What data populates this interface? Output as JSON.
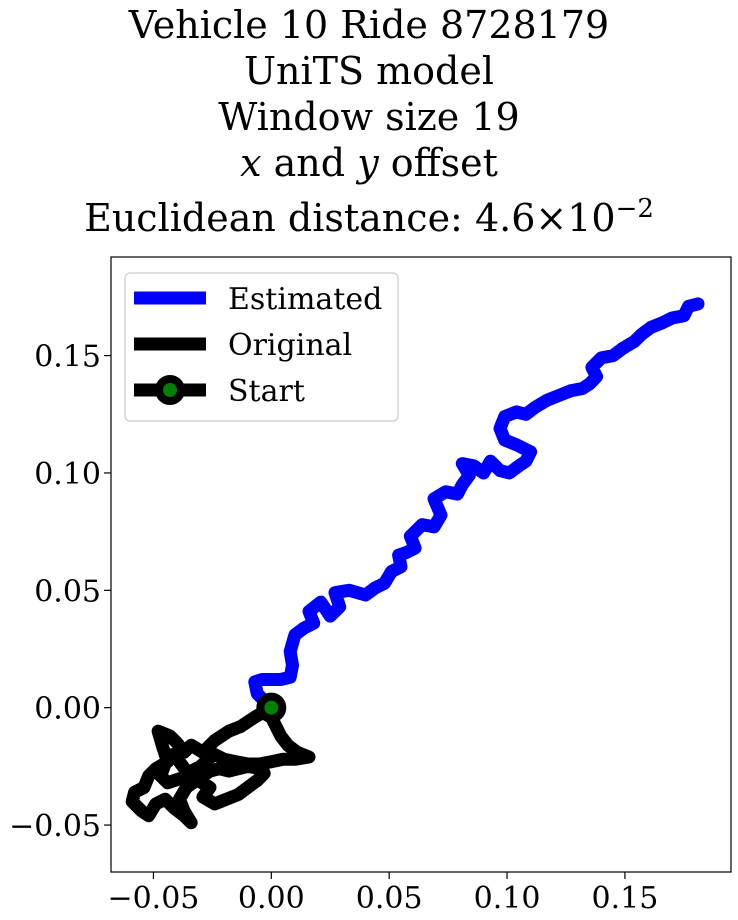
{
  "chart_data": {
    "type": "line",
    "title_lines": [
      "Vehicle 10 Ride 8728179",
      "UniTS model",
      "Window size 19"
    ],
    "title_offset_line": {
      "x_var": "x",
      "and": " and ",
      "y_var": "y",
      "tail": " offset"
    },
    "title_distance_line": {
      "label": "Euclidean distance: ",
      "mantissa": "4.6",
      "times": "×",
      "base": "10",
      "exponent": "−2"
    },
    "xlabel": "",
    "ylabel": "",
    "xlim": [
      -0.068,
      0.195
    ],
    "ylim": [
      -0.07,
      0.192
    ],
    "x_ticks": [
      -0.05,
      0.0,
      0.05,
      0.1,
      0.15
    ],
    "x_tick_labels": [
      "−0.05",
      "0.00",
      "0.05",
      "0.10",
      "0.15"
    ],
    "y_ticks": [
      -0.05,
      0.0,
      0.05,
      0.1,
      0.15
    ],
    "y_tick_labels": [
      "−0.05",
      "0.00",
      "0.05",
      "0.10",
      "0.15"
    ],
    "grid": false,
    "legend_position": "top-left",
    "series": [
      {
        "name": "Estimated",
        "color": "#0000ff",
        "points": [
          [
            0.0,
            0.0
          ],
          [
            -0.006,
            0.006
          ],
          [
            -0.007,
            0.011
          ],
          [
            -0.004,
            0.012
          ],
          [
            0.004,
            0.012
          ],
          [
            0.008,
            0.013
          ],
          [
            0.009,
            0.018
          ],
          [
            0.008,
            0.024
          ],
          [
            0.01,
            0.031
          ],
          [
            0.014,
            0.034
          ],
          [
            0.018,
            0.036
          ],
          [
            0.016,
            0.041
          ],
          [
            0.021,
            0.045
          ],
          [
            0.025,
            0.039
          ],
          [
            0.029,
            0.043
          ],
          [
            0.027,
            0.049
          ],
          [
            0.033,
            0.05
          ],
          [
            0.04,
            0.048
          ],
          [
            0.044,
            0.051
          ],
          [
            0.048,
            0.053
          ],
          [
            0.051,
            0.058
          ],
          [
            0.055,
            0.06
          ],
          [
            0.054,
            0.065
          ],
          [
            0.057,
            0.066
          ],
          [
            0.061,
            0.068
          ],
          [
            0.059,
            0.073
          ],
          [
            0.064,
            0.078
          ],
          [
            0.069,
            0.077
          ],
          [
            0.072,
            0.082
          ],
          [
            0.069,
            0.089
          ],
          [
            0.074,
            0.092
          ],
          [
            0.079,
            0.091
          ],
          [
            0.081,
            0.095
          ],
          [
            0.084,
            0.099
          ],
          [
            0.081,
            0.104
          ],
          [
            0.086,
            0.103
          ],
          [
            0.09,
            0.1
          ],
          [
            0.093,
            0.105
          ],
          [
            0.097,
            0.101
          ],
          [
            0.101,
            0.1
          ],
          [
            0.105,
            0.103
          ],
          [
            0.108,
            0.105
          ],
          [
            0.11,
            0.109
          ],
          [
            0.104,
            0.112
          ],
          [
            0.099,
            0.114
          ],
          [
            0.097,
            0.119
          ],
          [
            0.099,
            0.124
          ],
          [
            0.104,
            0.126
          ],
          [
            0.108,
            0.125
          ],
          [
            0.112,
            0.128
          ],
          [
            0.117,
            0.131
          ],
          [
            0.122,
            0.133
          ],
          [
            0.127,
            0.135
          ],
          [
            0.132,
            0.136
          ],
          [
            0.135,
            0.138
          ],
          [
            0.138,
            0.141
          ],
          [
            0.136,
            0.145
          ],
          [
            0.14,
            0.149
          ],
          [
            0.145,
            0.15
          ],
          [
            0.149,
            0.153
          ],
          [
            0.154,
            0.156
          ],
          [
            0.157,
            0.159
          ],
          [
            0.161,
            0.162
          ],
          [
            0.166,
            0.164
          ],
          [
            0.17,
            0.166
          ],
          [
            0.175,
            0.167
          ],
          [
            0.177,
            0.171
          ],
          [
            0.181,
            0.172
          ]
        ]
      },
      {
        "name": "Original",
        "color": "#000000",
        "points": [
          [
            0.0,
            0.0
          ],
          [
            -0.007,
            -0.004
          ],
          [
            -0.013,
            -0.008
          ],
          [
            -0.018,
            -0.01
          ],
          [
            -0.024,
            -0.014
          ],
          [
            -0.029,
            -0.019
          ],
          [
            -0.034,
            -0.016
          ],
          [
            -0.037,
            -0.019
          ],
          [
            -0.04,
            -0.015
          ],
          [
            -0.043,
            -0.012
          ],
          [
            -0.048,
            -0.01
          ],
          [
            -0.046,
            -0.017
          ],
          [
            -0.044,
            -0.023
          ],
          [
            -0.049,
            -0.026
          ],
          [
            -0.052,
            -0.029
          ],
          [
            -0.054,
            -0.034
          ],
          [
            -0.058,
            -0.036
          ],
          [
            -0.059,
            -0.04
          ],
          [
            -0.055,
            -0.044
          ],
          [
            -0.052,
            -0.046
          ],
          [
            -0.049,
            -0.041
          ],
          [
            -0.045,
            -0.039
          ],
          [
            -0.041,
            -0.043
          ],
          [
            -0.037,
            -0.046
          ],
          [
            -0.034,
            -0.049
          ],
          [
            -0.037,
            -0.044
          ],
          [
            -0.039,
            -0.039
          ],
          [
            -0.036,
            -0.034
          ],
          [
            -0.032,
            -0.031
          ],
          [
            -0.029,
            -0.029
          ],
          [
            -0.026,
            -0.027
          ],
          [
            -0.022,
            -0.026
          ],
          [
            -0.018,
            -0.027
          ],
          [
            -0.014,
            -0.026
          ],
          [
            -0.01,
            -0.025
          ],
          [
            -0.004,
            -0.026
          ],
          [
            -0.003,
            -0.028
          ],
          [
            -0.006,
            -0.031
          ],
          [
            -0.01,
            -0.034
          ],
          [
            -0.014,
            -0.037
          ],
          [
            -0.019,
            -0.039
          ],
          [
            -0.024,
            -0.041
          ],
          [
            -0.029,
            -0.038
          ],
          [
            -0.026,
            -0.034
          ],
          [
            -0.031,
            -0.031
          ],
          [
            -0.036,
            -0.027
          ],
          [
            -0.039,
            -0.023
          ],
          [
            -0.042,
            -0.02
          ],
          [
            -0.045,
            -0.024
          ],
          [
            -0.047,
            -0.029
          ],
          [
            -0.044,
            -0.032
          ],
          [
            -0.038,
            -0.03
          ],
          [
            -0.034,
            -0.027
          ],
          [
            -0.03,
            -0.025
          ],
          [
            -0.027,
            -0.022
          ],
          [
            -0.024,
            -0.02
          ],
          [
            -0.02,
            -0.022
          ],
          [
            -0.015,
            -0.023
          ],
          [
            -0.01,
            -0.024
          ],
          [
            -0.005,
            -0.024
          ],
          [
            0.0,
            -0.023
          ],
          [
            0.005,
            -0.022
          ],
          [
            0.01,
            -0.022
          ],
          [
            0.016,
            -0.021
          ],
          [
            0.011,
            -0.019
          ],
          [
            0.007,
            -0.016
          ],
          [
            0.004,
            -0.012
          ],
          [
            0.002,
            -0.008
          ],
          [
            0.0,
            -0.004
          ],
          [
            0.0,
            0.0
          ]
        ]
      }
    ],
    "start_point": {
      "name": "Start",
      "x": 0.0,
      "y": 0.0,
      "marker_color": "#008000",
      "edge_color": "#000000"
    }
  }
}
